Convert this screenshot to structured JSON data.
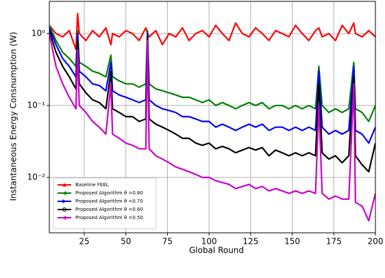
{
  "chart_data": {
    "type": "line",
    "xlabel": "Global Round",
    "ylabel": "Instantaneous Energy Consnumption (W)",
    "x": [
      4,
      8,
      12,
      16,
      20,
      21,
      22,
      26,
      30,
      34,
      38,
      41,
      42,
      46,
      50,
      54,
      58,
      62,
      63,
      64,
      68,
      72,
      76,
      80,
      84,
      88,
      92,
      96,
      100,
      104,
      108,
      112,
      116,
      120,
      124,
      128,
      132,
      136,
      140,
      144,
      148,
      152,
      156,
      160,
      164,
      166,
      168,
      172,
      176,
      180,
      184,
      187,
      188,
      192,
      196,
      200
    ],
    "series": [
      {
        "name": "Baseline FEEL",
        "color": "#ff0000",
        "values": [
          1.3,
          1.0,
          0.9,
          1.1,
          0.6,
          1.9,
          1.0,
          0.8,
          1.1,
          0.9,
          1.2,
          0.7,
          1.0,
          0.9,
          1.1,
          1.0,
          0.8,
          1.2,
          1.0,
          0.9,
          1.1,
          0.7,
          1.0,
          0.9,
          1.2,
          0.8,
          1.0,
          1.1,
          0.9,
          1.3,
          1.0,
          0.8,
          1.4,
          1.0,
          0.9,
          1.2,
          1.0,
          0.8,
          1.1,
          1.0,
          0.9,
          1.3,
          1.0,
          0.8,
          1.1,
          1.2,
          0.9,
          1.0,
          0.8,
          1.3,
          1.0,
          1.4,
          1.0,
          0.9,
          1.1,
          0.9
        ]
      },
      {
        "name": "Proposed Algorithm θ =0.80",
        "color": "#008000",
        "values": [
          1.3,
          0.8,
          0.55,
          0.45,
          0.35,
          1.1,
          0.4,
          0.35,
          0.3,
          0.28,
          0.25,
          0.5,
          0.25,
          0.22,
          0.2,
          0.2,
          0.18,
          0.2,
          1.1,
          0.2,
          0.17,
          0.16,
          0.15,
          0.14,
          0.13,
          0.13,
          0.12,
          0.11,
          0.12,
          0.1,
          0.11,
          0.1,
          0.09,
          0.1,
          0.11,
          0.1,
          0.11,
          0.09,
          0.1,
          0.1,
          0.09,
          0.1,
          0.09,
          0.1,
          0.09,
          0.35,
          0.1,
          0.08,
          0.09,
          0.08,
          0.09,
          0.4,
          0.09,
          0.08,
          0.06,
          0.1
        ]
      },
      {
        "name": "Proposed Algorithm θ =0.70",
        "color": "#0000ff",
        "values": [
          1.2,
          0.7,
          0.45,
          0.35,
          0.25,
          1.0,
          0.3,
          0.25,
          0.2,
          0.19,
          0.16,
          0.4,
          0.16,
          0.14,
          0.13,
          0.12,
          0.11,
          0.12,
          1.0,
          0.12,
          0.1,
          0.09,
          0.085,
          0.08,
          0.07,
          0.07,
          0.065,
          0.06,
          0.06,
          0.05,
          0.055,
          0.05,
          0.045,
          0.05,
          0.055,
          0.05,
          0.055,
          0.045,
          0.05,
          0.05,
          0.045,
          0.05,
          0.045,
          0.05,
          0.045,
          0.3,
          0.05,
          0.04,
          0.045,
          0.04,
          0.045,
          0.35,
          0.045,
          0.04,
          0.03,
          0.05
        ]
      },
      {
        "name": "Proposed Algorithm θ =0.60",
        "color": "#000000",
        "values": [
          1.1,
          0.55,
          0.35,
          0.25,
          0.17,
          0.8,
          0.2,
          0.15,
          0.12,
          0.11,
          0.09,
          0.3,
          0.09,
          0.08,
          0.07,
          0.07,
          0.06,
          0.065,
          0.9,
          0.065,
          0.055,
          0.05,
          0.045,
          0.04,
          0.035,
          0.035,
          0.03,
          0.028,
          0.03,
          0.025,
          0.027,
          0.025,
          0.022,
          0.024,
          0.026,
          0.024,
          0.026,
          0.02,
          0.024,
          0.022,
          0.02,
          0.022,
          0.02,
          0.022,
          0.02,
          0.2,
          0.022,
          0.018,
          0.02,
          0.016,
          0.02,
          0.25,
          0.02,
          0.015,
          0.012,
          0.03
        ]
      },
      {
        "name": "Proposed Algorithm θ =0.50",
        "color": "#cc00cc",
        "values": [
          1.0,
          0.35,
          0.2,
          0.13,
          0.09,
          0.6,
          0.1,
          0.08,
          0.06,
          0.05,
          0.04,
          0.2,
          0.04,
          0.035,
          0.03,
          0.028,
          0.025,
          0.025,
          0.8,
          0.025,
          0.02,
          0.018,
          0.016,
          0.014,
          0.013,
          0.012,
          0.011,
          0.01,
          0.01,
          0.009,
          0.0085,
          0.008,
          0.007,
          0.0075,
          0.008,
          0.007,
          0.0075,
          0.0065,
          0.007,
          0.0065,
          0.006,
          0.0065,
          0.006,
          0.0065,
          0.006,
          0.1,
          0.006,
          0.005,
          0.0055,
          0.005,
          0.005,
          0.2,
          0.0045,
          0.004,
          0.0025,
          0.006
        ]
      }
    ],
    "xlim": [
      4,
      200
    ],
    "xticks": [
      25,
      50,
      75,
      100,
      125,
      150,
      175,
      200
    ],
    "ylim": [
      0.0017,
      2.8
    ],
    "yticks": [
      {
        "value": 0.01,
        "label": "10⁻²"
      },
      {
        "value": 0.1,
        "label": "10⁻¹"
      },
      {
        "value": 1,
        "label": "10⁰"
      }
    ],
    "log_y": true,
    "grid": true,
    "legend": "lower left"
  }
}
